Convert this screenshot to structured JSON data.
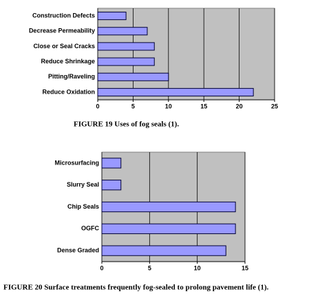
{
  "chart_data": [
    {
      "type": "bar",
      "orientation": "horizontal",
      "title": "FIGURE 19  Uses of fog seals (1).",
      "categories": [
        "Construction Defects",
        "Decrease Permeability",
        "Close or Seal Cracks",
        "Reduce Shrinkage",
        "Pitting/Raveling",
        "Reduce Oxidation"
      ],
      "values": [
        4,
        7,
        8,
        8,
        10,
        22
      ],
      "color": "#9999ff",
      "xlim": [
        0,
        25
      ],
      "xticks": [
        0,
        5,
        10,
        15,
        20,
        25
      ],
      "grid": true
    },
    {
      "type": "bar",
      "orientation": "horizontal",
      "title": "FIGURE 20  Surface treatments frequently fog-sealed to prolong pavement life (1).",
      "categories": [
        "Microsurfacing",
        "Slurry Seal",
        "Chip Seals",
        "OGFC",
        "Dense Graded"
      ],
      "values": [
        2,
        2,
        14,
        14,
        13
      ],
      "color": "#9999ff",
      "xlim": [
        0,
        15
      ],
      "xticks": [
        0,
        5,
        10,
        15
      ],
      "grid": true
    }
  ]
}
